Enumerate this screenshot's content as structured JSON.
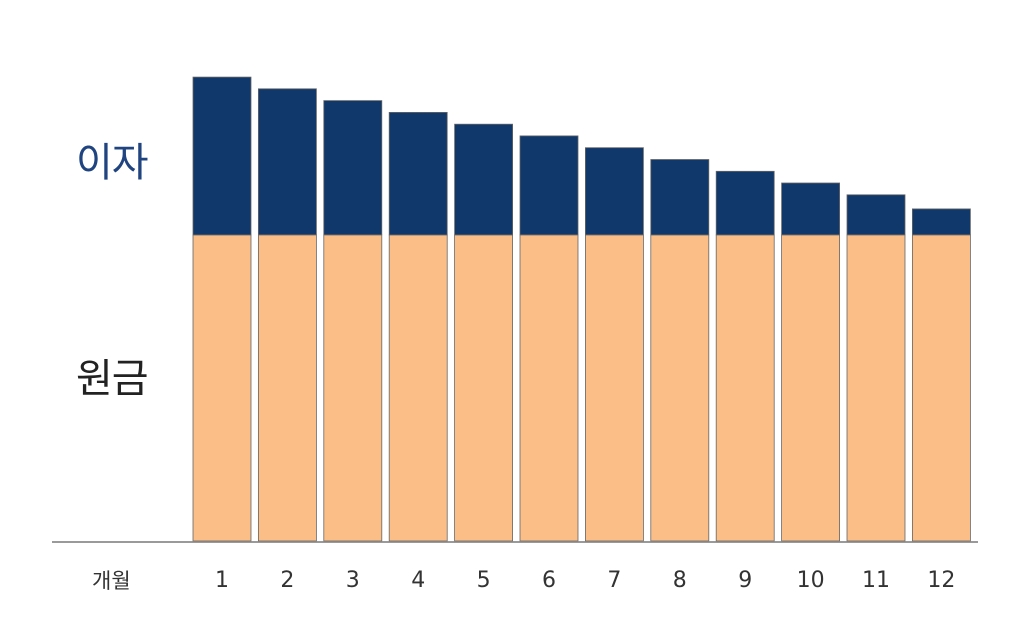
{
  "chart_data": {
    "type": "bar",
    "stacked": true,
    "categories": [
      "1",
      "2",
      "3",
      "4",
      "5",
      "6",
      "7",
      "8",
      "9",
      "10",
      "11",
      "12"
    ],
    "series": [
      {
        "name": "원금",
        "color": "#fbbe87",
        "values": [
          65,
          65,
          65,
          65,
          65,
          65,
          65,
          65,
          65,
          65,
          65,
          65
        ]
      },
      {
        "name": "이자",
        "color": "#11386b",
        "values": [
          33.5,
          31,
          28.5,
          26,
          23.5,
          21,
          18.5,
          16,
          13.5,
          11,
          8.5,
          5.5
        ]
      }
    ],
    "xlabel": "개월",
    "ylabel": "",
    "title": "",
    "ylim": [
      0,
      100
    ],
    "grid": false,
    "legend": "left-inline",
    "series_label_colors": {
      "이자": "#1f4480",
      "원금": "#222222"
    }
  }
}
